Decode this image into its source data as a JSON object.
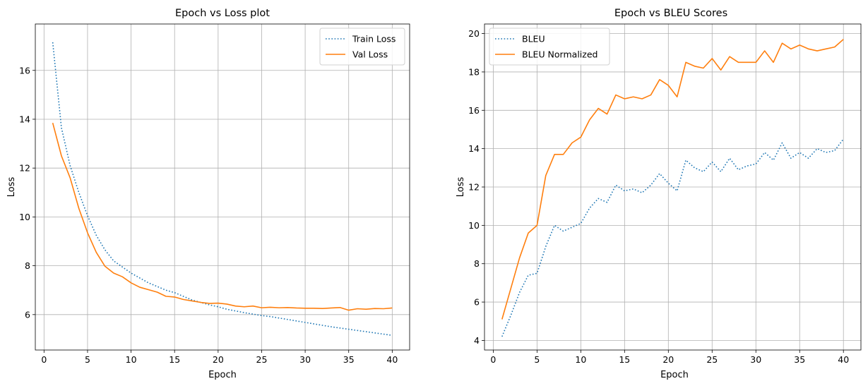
{
  "charts": [
    {
      "title": "Epoch vs Loss plot",
      "xlabel": "Epoch",
      "ylabel": "Loss",
      "xlim": [
        -1,
        42
      ],
      "ylim": [
        4.55,
        17.9
      ],
      "xticks": [
        0,
        5,
        10,
        15,
        20,
        25,
        30,
        35,
        40
      ],
      "xtick_labels": [
        "0",
        "5",
        "10",
        "15",
        "20",
        "25",
        "30",
        "35",
        "40"
      ],
      "yticks": [
        6,
        8,
        10,
        12,
        14,
        16
      ],
      "ytick_labels": [
        "6",
        "8",
        "10",
        "12",
        "14",
        "16"
      ],
      "legend_position": "upper right"
    },
    {
      "title": "Epoch vs BLEU Scores",
      "xlabel": "Epoch",
      "ylabel": "Loss",
      "xlim": [
        -1,
        42
      ],
      "ylim": [
        3.5,
        20.5
      ],
      "xticks": [
        0,
        5,
        10,
        15,
        20,
        25,
        30,
        35,
        40
      ],
      "xtick_labels": [
        "0",
        "5",
        "10",
        "15",
        "20",
        "25",
        "30",
        "35",
        "40"
      ],
      "yticks": [
        4,
        6,
        8,
        10,
        12,
        14,
        16,
        18,
        20
      ],
      "ytick_labels": [
        "4",
        "6",
        "8",
        "10",
        "12",
        "14",
        "16",
        "18",
        "20"
      ],
      "legend_position": "upper left"
    }
  ],
  "chart_data": [
    {
      "type": "line",
      "title": "Epoch vs Loss plot",
      "xlabel": "Epoch",
      "ylabel": "Loss",
      "grid": true,
      "x": [
        1,
        2,
        3,
        4,
        5,
        6,
        7,
        8,
        9,
        10,
        11,
        12,
        13,
        14,
        15,
        16,
        17,
        18,
        19,
        20,
        21,
        22,
        23,
        24,
        25,
        26,
        27,
        28,
        29,
        30,
        31,
        32,
        33,
        34,
        35,
        36,
        37,
        38,
        39,
        40
      ],
      "series": [
        {
          "name": "Train Loss",
          "color": "#1f77b4",
          "style": "dotted",
          "values": [
            17.15,
            13.65,
            12.1,
            11.0,
            10.05,
            9.25,
            8.65,
            8.2,
            7.95,
            7.7,
            7.5,
            7.3,
            7.15,
            7.0,
            6.9,
            6.75,
            6.6,
            6.5,
            6.4,
            6.32,
            6.22,
            6.15,
            6.08,
            6.02,
            5.96,
            5.92,
            5.86,
            5.8,
            5.74,
            5.68,
            5.62,
            5.56,
            5.5,
            5.45,
            5.4,
            5.35,
            5.3,
            5.25,
            5.2,
            5.15
          ]
        },
        {
          "name": "Val Loss",
          "color": "#ff7f0e",
          "style": "solid",
          "values": [
            13.85,
            12.5,
            11.6,
            10.35,
            9.35,
            8.55,
            7.98,
            7.7,
            7.55,
            7.3,
            7.12,
            7.02,
            6.92,
            6.75,
            6.72,
            6.62,
            6.56,
            6.5,
            6.46,
            6.47,
            6.43,
            6.35,
            6.32,
            6.35,
            6.28,
            6.3,
            6.28,
            6.29,
            6.27,
            6.26,
            6.26,
            6.25,
            6.27,
            6.29,
            6.18,
            6.24,
            6.22,
            6.25,
            6.24,
            6.27
          ]
        }
      ]
    },
    {
      "type": "line",
      "title": "Epoch vs BLEU Scores",
      "xlabel": "Epoch",
      "ylabel": "Loss",
      "grid": true,
      "x": [
        1,
        2,
        3,
        4,
        5,
        6,
        7,
        8,
        9,
        10,
        11,
        12,
        13,
        14,
        15,
        16,
        17,
        18,
        19,
        20,
        21,
        22,
        23,
        24,
        25,
        26,
        27,
        28,
        29,
        30,
        31,
        32,
        33,
        34,
        35,
        36,
        37,
        38,
        39,
        40
      ],
      "series": [
        {
          "name": "BLEU",
          "color": "#1f77b4",
          "style": "dotted",
          "values": [
            4.2,
            5.3,
            6.5,
            7.4,
            7.5,
            8.9,
            10.0,
            9.7,
            9.9,
            10.1,
            10.9,
            11.4,
            11.2,
            12.1,
            11.8,
            11.9,
            11.7,
            12.1,
            12.7,
            12.2,
            11.8,
            13.4,
            13.0,
            12.8,
            13.3,
            12.8,
            13.5,
            12.9,
            13.1,
            13.2,
            13.8,
            13.4,
            14.3,
            13.5,
            13.8,
            13.5,
            14.0,
            13.8,
            13.9,
            14.5
          ]
        },
        {
          "name": "BLEU Normalized",
          "color": "#ff7f0e",
          "style": "solid",
          "values": [
            5.1,
            6.7,
            8.3,
            9.6,
            10.0,
            12.6,
            13.7,
            13.7,
            14.3,
            14.6,
            15.5,
            16.1,
            15.8,
            16.8,
            16.6,
            16.7,
            16.6,
            16.8,
            17.6,
            17.3,
            16.7,
            18.5,
            18.3,
            18.2,
            18.7,
            18.1,
            18.8,
            18.5,
            18.5,
            18.5,
            19.1,
            18.5,
            19.5,
            19.2,
            19.4,
            19.2,
            19.1,
            19.2,
            19.3,
            19.7
          ]
        }
      ]
    }
  ]
}
